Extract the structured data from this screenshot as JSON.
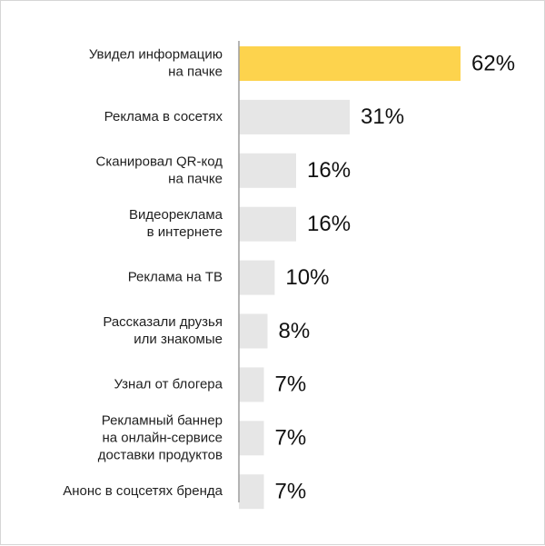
{
  "chart_data": {
    "type": "bar",
    "orientation": "horizontal",
    "categories": [
      [
        "Увидел информацию",
        "на пачке"
      ],
      [
        "Реклама в сосетях"
      ],
      [
        "Сканировал QR-код",
        "на пачке"
      ],
      [
        "Видеореклама",
        "в интернете"
      ],
      [
        "Реклама на ТВ"
      ],
      [
        "Рассказали друзья",
        "или знакомые"
      ],
      [
        "Узнал от блогера"
      ],
      [
        "Рекламный баннер",
        "на онлайн-сервисе",
        "доставки продуктов"
      ],
      [
        "Анонс в соцсетях бренда"
      ]
    ],
    "values": [
      62,
      31,
      16,
      16,
      10,
      8,
      7,
      7,
      7
    ],
    "value_labels": [
      "62%",
      "31%",
      "16%",
      "16%",
      "10%",
      "8%",
      "7%",
      "7%",
      "7%"
    ],
    "highlight_index": 0,
    "colors": {
      "highlight": "#FDD34D",
      "bar": "#E6E6E6",
      "axis": "#9E9E9E"
    },
    "xlim": [
      0,
      62
    ],
    "grid": false,
    "legend": "none"
  }
}
